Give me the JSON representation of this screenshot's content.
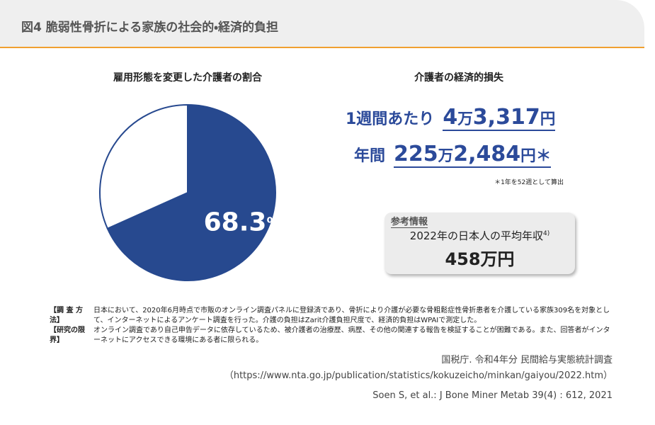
{
  "header": {
    "title": "図4 脆弱性骨折による家族の社会的・経済的負担"
  },
  "chart_data": {
    "type": "pie",
    "title": "雇用形態を変更した介護者の割合",
    "values": [
      68.3,
      31.7
    ],
    "value_labels": [
      "68.3%",
      null
    ],
    "colors": [
      "#27498f",
      "#ffffff"
    ],
    "edge_color": "#27498f"
  },
  "loss": {
    "title": "介護者の経済的損失",
    "weekly": {
      "label": "1週間あたり",
      "amount": "4万3,317円"
    },
    "annual": {
      "label": "年間",
      "amount": "225万2,484円＊"
    },
    "note": "＊1年を52週として算出"
  },
  "reference": {
    "tag": "参考情報",
    "label": "2022年の日本人の平均年収",
    "sup": "4)",
    "amount": "458万円"
  },
  "notes": [
    {
      "head": "【調 査 方 法】",
      "text": "日本において、2020年6月時点で市販のオンライン調査パネルに登録済であり、骨折により介護が必要な骨粗鬆症性骨折患者を介護している家族309名を対象として、インターネットによるアンケート調査を行った。介護の負担はZarit介護負担尺度で、経済的負担はWPAIで測定した。"
    },
    {
      "head": "【研究の限界】",
      "text": "オンライン調査であり自己申告データに依存しているため、被介護者の治療歴、病歴、その他の関連する報告を検証することが困難である。また、回答者がインターネットにアクセスできる環境にある者に限られる。"
    }
  ],
  "sources": [
    "国税庁. 令和4年分 民間給与実態統計調査（https://www.nta.go.jp/publication/statistics/kokuzeicho/minkan/gaiyou/2022.htm）",
    "Soen S, et al.: J Bone Miner Metab 39(4) : 612, 2021"
  ]
}
